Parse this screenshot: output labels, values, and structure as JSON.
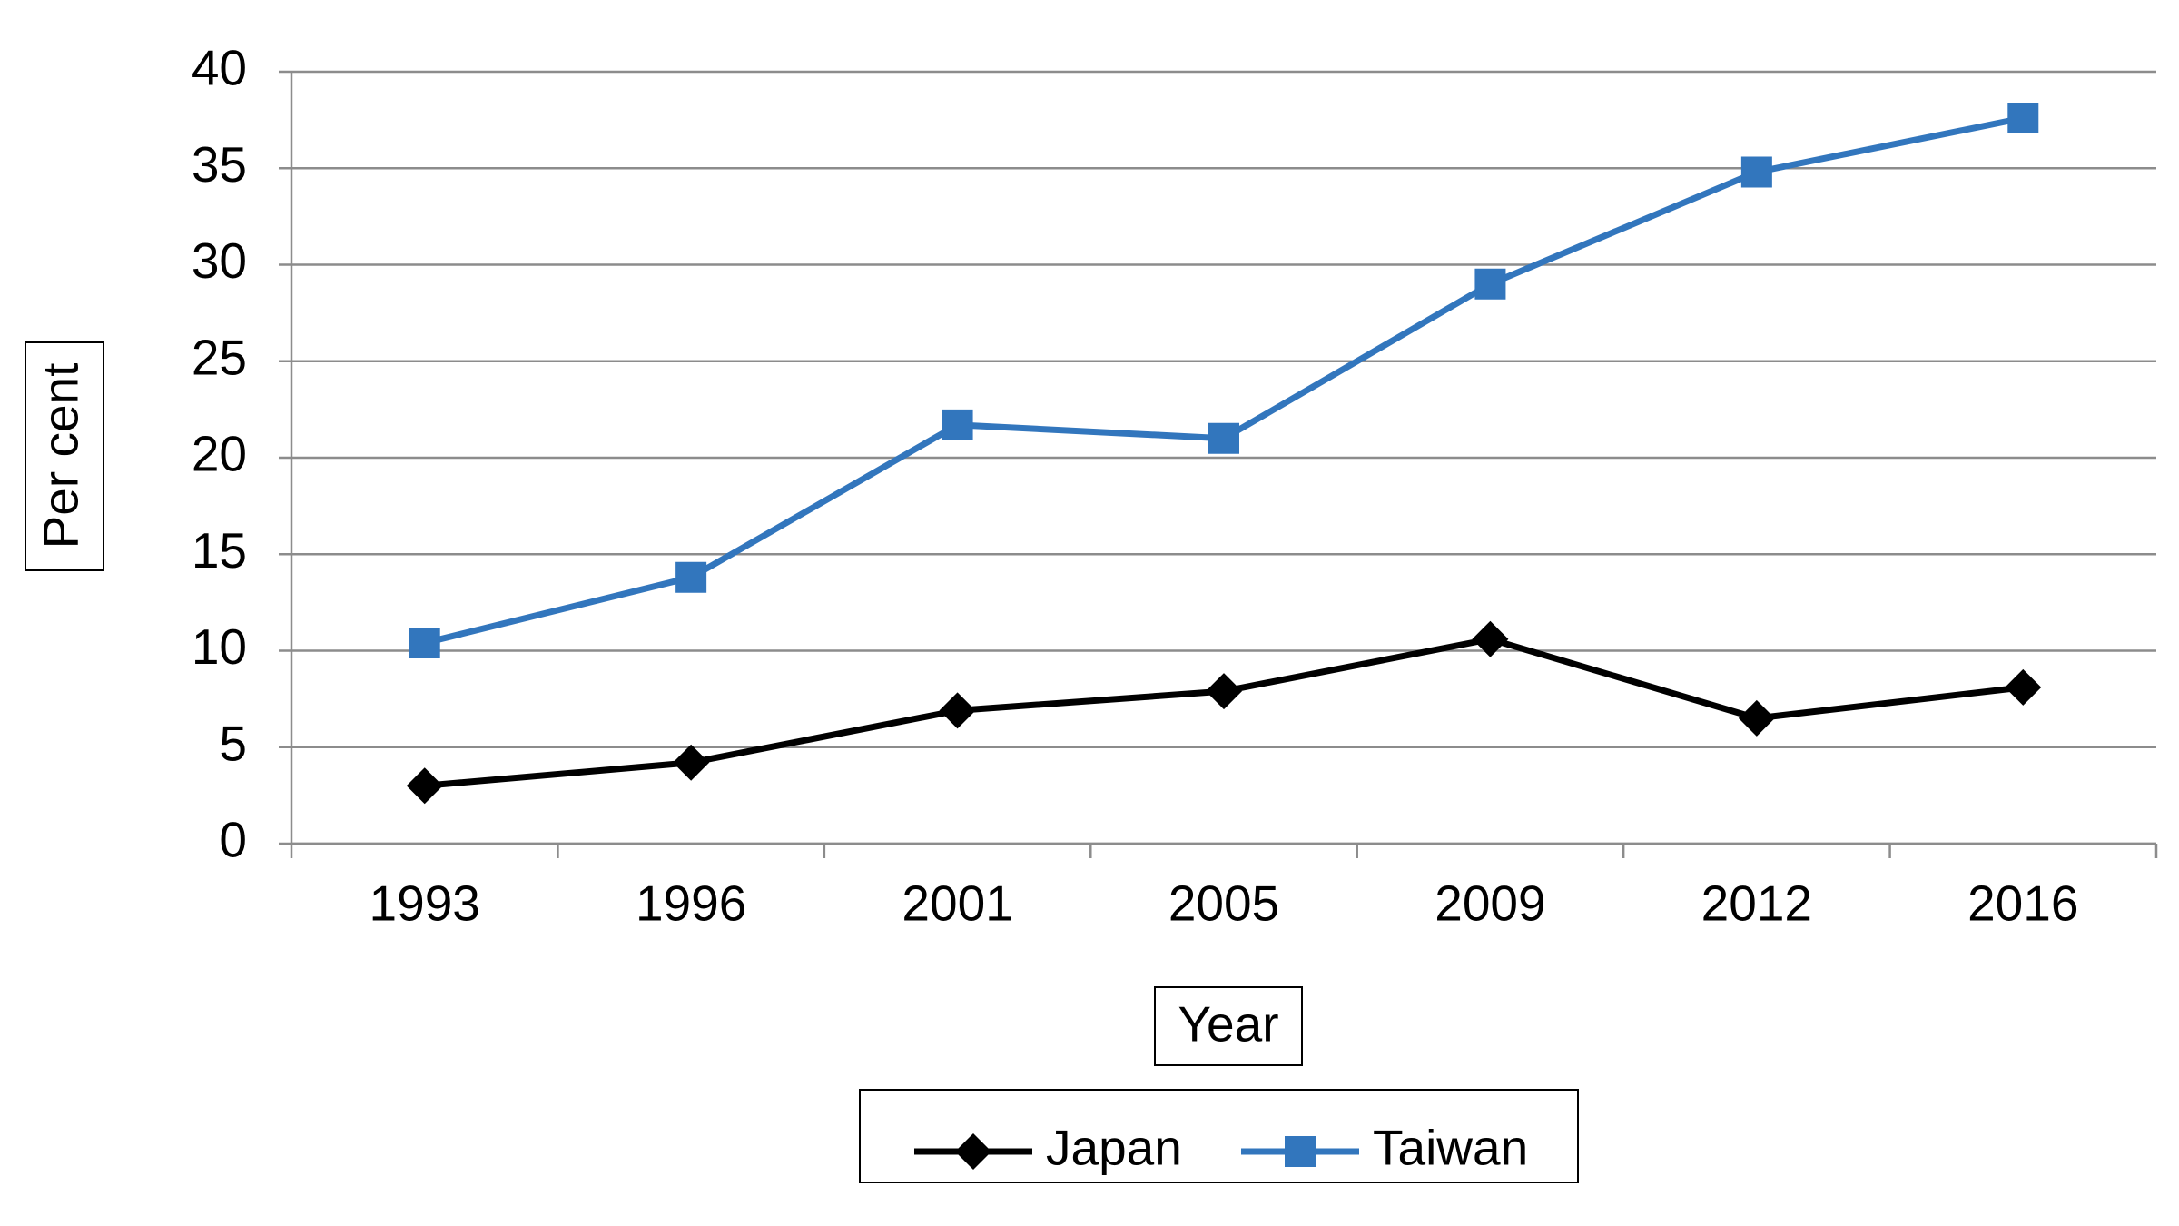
{
  "chart_data": {
    "type": "line",
    "x_label": "Year",
    "y_label": "Per cent",
    "categories": [
      "1993",
      "1996",
      "2001",
      "2005",
      "2009",
      "2012",
      "2016"
    ],
    "series": [
      {
        "name": "Japan",
        "color": "#000000",
        "marker": "diamond",
        "values": [
          3.0,
          4.2,
          6.9,
          7.9,
          10.6,
          6.5,
          8.1
        ]
      },
      {
        "name": "Taiwan",
        "color": "#3276bd",
        "marker": "square",
        "values": [
          10.4,
          13.8,
          21.7,
          21.0,
          29.0,
          34.8,
          37.6
        ]
      }
    ],
    "ylim": [
      0,
      40
    ],
    "yticks": [
      0,
      5,
      10,
      15,
      20,
      25,
      30,
      35,
      40
    ],
    "grid": true,
    "legend": "bottom"
  }
}
